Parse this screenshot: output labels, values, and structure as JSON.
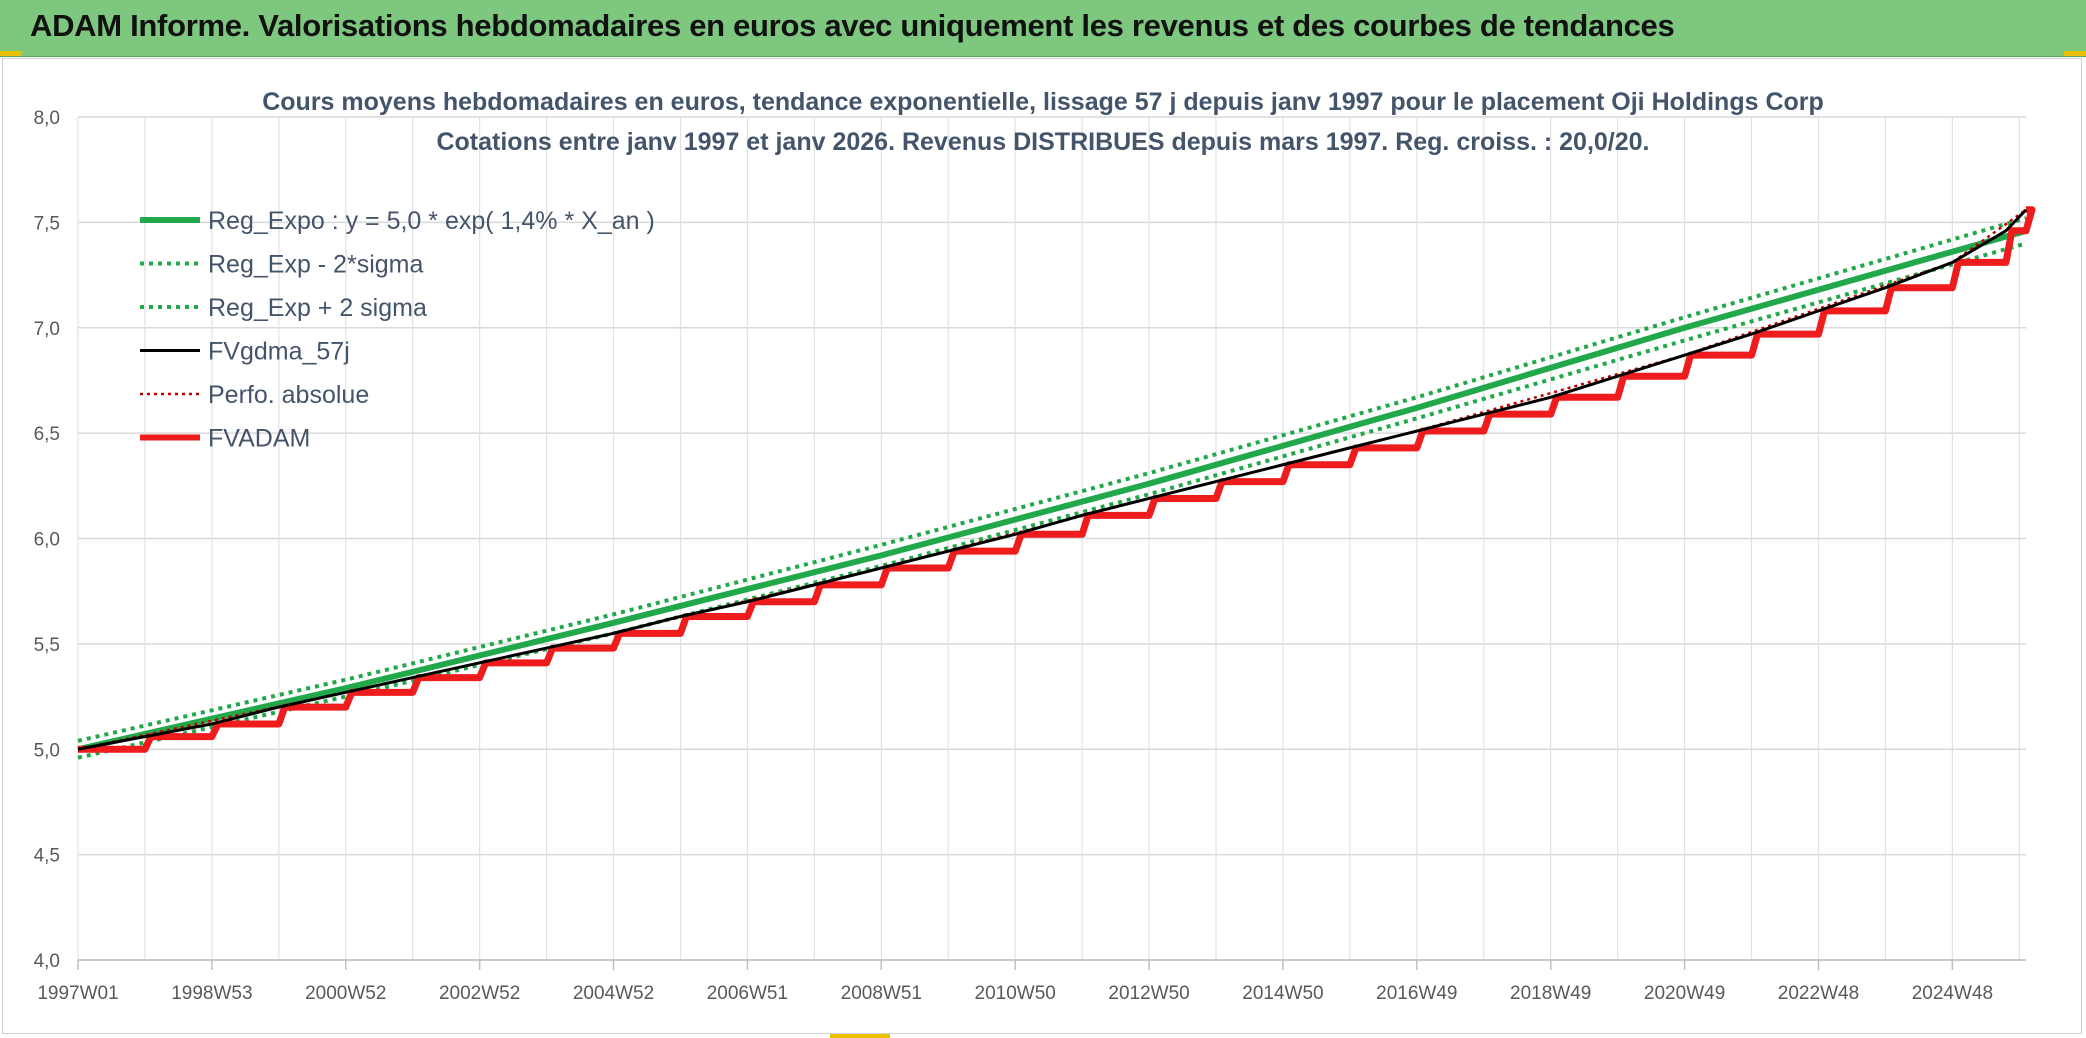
{
  "banner": {
    "title": "ADAM Informe. Valorisations hebdomadaires en euros avec uniquement les revenus et des courbes de tendances",
    "background": "#7dc77f"
  },
  "chart_data": {
    "type": "line",
    "title": "Cours moyens hebdomadaires en euros, tendance exponentielle, lissage 57 j depuis janv 1997 pour le placement Oji Holdings Corp",
    "subtitle": "Cotations entre janv 1997 et janv 2026. Revenus DISTRIBUES depuis mars 1997. Reg. croiss. : 20,0/20.",
    "xlabel": "",
    "ylabel": "",
    "ylim": [
      4.0,
      8.0
    ],
    "yticks": [
      "4,0",
      "4,5",
      "5,0",
      "5,5",
      "6,0",
      "6,5",
      "7,0",
      "7,5",
      "8,0"
    ],
    "xlim": [
      1997.0,
      2026.1
    ],
    "xticks": [
      {
        "label": "1997W01",
        "x": 1997.0
      },
      {
        "label": "1998W53",
        "x": 1999.0
      },
      {
        "label": "2000W52",
        "x": 2001.0
      },
      {
        "label": "2002W52",
        "x": 2003.0
      },
      {
        "label": "2004W52",
        "x": 2005.0
      },
      {
        "label": "2006W51",
        "x": 2007.0
      },
      {
        "label": "2008W51",
        "x": 2009.0
      },
      {
        "label": "2010W50",
        "x": 2011.0
      },
      {
        "label": "2012W50",
        "x": 2013.0
      },
      {
        "label": "2014W50",
        "x": 2015.0
      },
      {
        "label": "2016W49",
        "x": 2017.0
      },
      {
        "label": "2018W49",
        "x": 2019.0
      },
      {
        "label": "2020W49",
        "x": 2021.0
      },
      {
        "label": "2022W48",
        "x": 2023.0
      },
      {
        "label": "2024W48",
        "x": 2025.0
      }
    ],
    "grid": true,
    "legend_position": "top-left",
    "series": [
      {
        "name": "Reg_Expo : y = 5,0 * exp( 1,4% *  X_an )",
        "color": "#21a84a",
        "style": "solid-thick",
        "x": [
          1997.0,
          2001.0,
          2005.0,
          2009.0,
          2013.0,
          2017.0,
          2021.0,
          2026.1
        ],
        "values": [
          5.0,
          5.29,
          5.6,
          5.92,
          6.26,
          6.62,
          7.0,
          7.46
        ]
      },
      {
        "name": "Reg_Exp - 2*sigma",
        "color": "#21a84a",
        "style": "dotted",
        "x": [
          1997.0,
          2001.0,
          2005.0,
          2009.0,
          2013.0,
          2017.0,
          2021.0,
          2026.1
        ],
        "values": [
          4.96,
          5.25,
          5.55,
          5.87,
          6.21,
          6.57,
          6.94,
          7.4
        ]
      },
      {
        "name": "Reg_Exp + 2 sigma",
        "color": "#21a84a",
        "style": "dotted",
        "x": [
          1997.0,
          2001.0,
          2005.0,
          2009.0,
          2013.0,
          2017.0,
          2021.0,
          2026.1
        ],
        "values": [
          5.04,
          5.33,
          5.64,
          5.97,
          6.31,
          6.67,
          7.05,
          7.52
        ]
      },
      {
        "name": "FVgdma_57j",
        "color": "#000000",
        "style": "solid",
        "x": [
          1997.0,
          1998.0,
          1999.0,
          2000.0,
          2001.0,
          2002.0,
          2003.0,
          2004.0,
          2005.0,
          2006.0,
          2007.0,
          2008.0,
          2009.0,
          2010.0,
          2011.0,
          2012.0,
          2013.0,
          2014.0,
          2015.0,
          2016.0,
          2017.0,
          2018.0,
          2019.0,
          2020.0,
          2021.0,
          2022.0,
          2023.0,
          2024.0,
          2025.0,
          2025.8,
          2026.1
        ],
        "values": [
          5.0,
          5.06,
          5.12,
          5.2,
          5.27,
          5.34,
          5.41,
          5.48,
          5.55,
          5.63,
          5.7,
          5.78,
          5.86,
          5.94,
          6.02,
          6.11,
          6.19,
          6.27,
          6.35,
          6.43,
          6.51,
          6.59,
          6.67,
          6.77,
          6.87,
          6.97,
          7.08,
          7.19,
          7.31,
          7.46,
          7.56
        ]
      },
      {
        "name": "Perfo. absolue",
        "color": "#c00000",
        "style": "dotted-thin",
        "x": [
          1997.0,
          2001.0,
          2005.0,
          2009.0,
          2013.0,
          2017.0,
          2021.0,
          2025.0,
          2026.1
        ],
        "values": [
          5.0,
          5.27,
          5.55,
          5.86,
          6.19,
          6.51,
          6.87,
          7.31,
          7.56
        ]
      },
      {
        "name": "FVADAM",
        "color": "#ee1c1c",
        "style": "step-thick",
        "x": [
          1997.0,
          1998.0,
          1999.0,
          2000.0,
          2001.0,
          2002.0,
          2003.0,
          2004.0,
          2005.0,
          2006.0,
          2007.0,
          2008.0,
          2009.0,
          2010.0,
          2011.0,
          2012.0,
          2013.0,
          2014.0,
          2015.0,
          2016.0,
          2017.0,
          2018.0,
          2019.0,
          2020.0,
          2021.0,
          2022.0,
          2023.0,
          2024.0,
          2025.0,
          2025.8,
          2026.1
        ],
        "values": [
          5.0,
          5.06,
          5.12,
          5.2,
          5.27,
          5.34,
          5.41,
          5.48,
          5.55,
          5.63,
          5.7,
          5.78,
          5.86,
          5.94,
          6.02,
          6.11,
          6.19,
          6.27,
          6.35,
          6.43,
          6.51,
          6.59,
          6.67,
          6.77,
          6.87,
          6.97,
          7.08,
          7.19,
          7.31,
          7.46,
          7.56
        ]
      }
    ]
  }
}
